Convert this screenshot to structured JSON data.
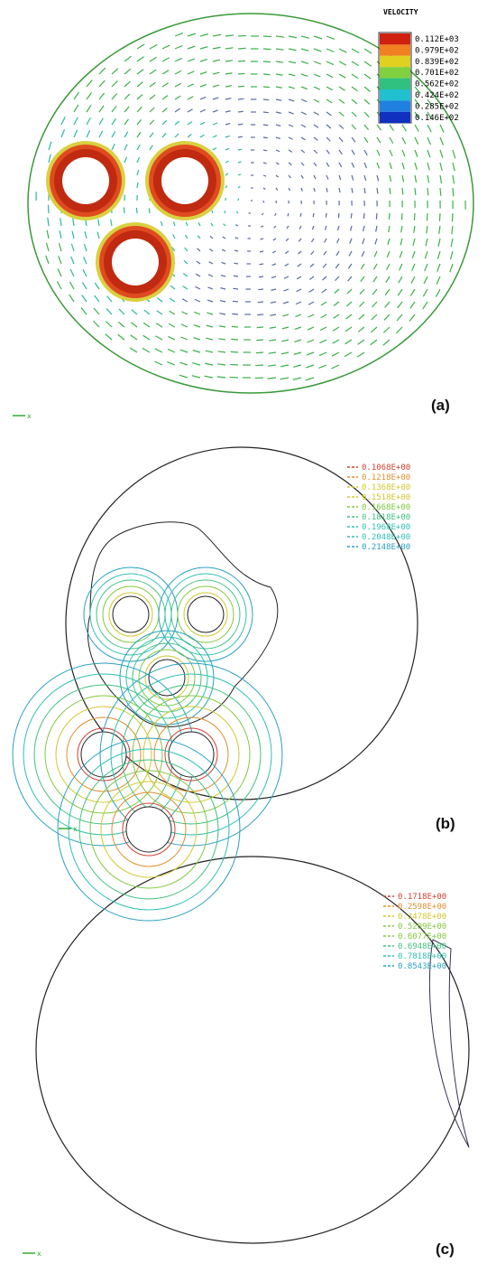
{
  "panels": [
    {
      "label": "(a)",
      "legend_title": "VELOCITY",
      "legend": [
        "0.112E+03",
        "0.979E+02",
        "0.839E+02",
        "0.701E+02",
        "0.562E+02",
        "0.424E+02",
        "0.285E+02",
        "0.146E+02"
      ],
      "axis": "x"
    },
    {
      "label": "(b)",
      "legend": [
        "0.1068E+00",
        "0.1218E+00",
        "0.1368E+00",
        "0.1518E+00",
        "0.1668E+00",
        "0.1818E+00",
        "0.1968E+00",
        "0.2048E+00",
        "0.2148E+00"
      ],
      "axis": "x"
    },
    {
      "label": "(c)",
      "legend": [
        "0.1718E+00",
        "0.2598E+00",
        "0.3478E+00",
        "0.5209E+00",
        "0.6077E+00",
        "0.6948E+00",
        "0.7818E+00",
        "0.8543E+00"
      ],
      "axis": "x"
    }
  ]
}
